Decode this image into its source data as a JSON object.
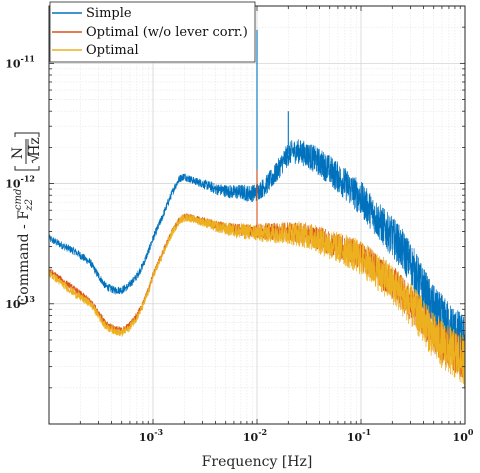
{
  "chart_data": {
    "type": "line",
    "xlabel": "Frequency [Hz]",
    "ylabel": "Command - F_{z2}^{cmd} [N/√Hz]",
    "ylabel_parts": {
      "prefix": "Command - F",
      "superscript": "cmd",
      "subscript": "z2",
      "unit_numerator": "N",
      "unit_denominator": "Hz"
    },
    "xscale": "log",
    "yscale": "log",
    "xlim": [
      0.0001,
      1
    ],
    "ylim": [
      1e-14,
      3e-11
    ],
    "grid": true,
    "legend_position": "top-left",
    "x_ticks": [
      {
        "value": 0.001,
        "label": "10^-3",
        "base": "10",
        "exp": "-3"
      },
      {
        "value": 0.01,
        "label": "10^-2",
        "base": "10",
        "exp": "-2"
      },
      {
        "value": 0.1,
        "label": "10^-1",
        "base": "10",
        "exp": "-1"
      },
      {
        "value": 1,
        "label": "10^0",
        "base": "10",
        "exp": "0"
      }
    ],
    "y_ticks": [
      {
        "value": 1e-13,
        "label": "10^-13",
        "base": "10",
        "exp": "-13"
      },
      {
        "value": 1e-12,
        "label": "10^-12",
        "base": "10",
        "exp": "-12"
      },
      {
        "value": 1e-11,
        "label": "10^-11",
        "base": "10",
        "exp": "-11"
      }
    ],
    "series": [
      {
        "name": "Simple",
        "color": "#0072BD",
        "x": [
          0.0001,
          0.00013,
          0.00018,
          0.00025,
          0.0003,
          0.00035,
          0.00042,
          0.0005,
          0.00058,
          0.0007,
          0.0008,
          0.0009,
          0.001,
          0.0012,
          0.0014,
          0.0016,
          0.0018,
          0.002,
          0.0022,
          0.0025,
          0.003,
          0.0035,
          0.004,
          0.005,
          0.006,
          0.007,
          0.008,
          0.009,
          0.01,
          0.012,
          0.015,
          0.018,
          0.02,
          0.022,
          0.025,
          0.03,
          0.04,
          0.05,
          0.07,
          0.1,
          0.13,
          0.17,
          0.22,
          0.3,
          0.4,
          0.5,
          0.7,
          1
        ],
        "y": [
          3.5e-13,
          3.1e-13,
          2.7e-13,
          2.2e-13,
          1.7e-13,
          1.4e-13,
          1.3e-13,
          1.3e-13,
          1.4e-13,
          1.7e-13,
          2.1e-13,
          2.7e-13,
          3.5e-13,
          5e-13,
          7e-13,
          9.2e-13,
          1.1e-12,
          1.15e-12,
          1.1e-12,
          1.05e-12,
          1e-12,
          9.5e-13,
          9e-13,
          8.7e-13,
          8.5e-13,
          8.5e-13,
          8.3e-13,
          8.3e-13,
          8.5e-13,
          9.5e-13,
          1.2e-12,
          1.55e-12,
          1.75e-12,
          1.85e-12,
          1.85e-12,
          1.75e-12,
          1.5e-12,
          1.3e-12,
          1e-12,
          7.5e-13,
          5.6e-13,
          4.2e-13,
          3.3e-13,
          2.2e-13,
          1.3e-13,
          9e-14,
          6.5e-14,
          4.8e-14
        ],
        "band": 0.22,
        "peaks": [
          {
            "x": 0.01,
            "y": 1.9e-11
          },
          {
            "x": 0.02,
            "y": 4e-12
          }
        ]
      },
      {
        "name": "Optimal (w/o lever corr.)",
        "color": "#D95319",
        "x": [
          0.0001,
          0.00013,
          0.00018,
          0.00025,
          0.0003,
          0.00035,
          0.00042,
          0.0005,
          0.00058,
          0.0007,
          0.0008,
          0.0009,
          0.001,
          0.0012,
          0.0014,
          0.0016,
          0.0018,
          0.002,
          0.0022,
          0.0025,
          0.003,
          0.0035,
          0.004,
          0.005,
          0.006,
          0.007,
          0.008,
          0.009,
          0.01,
          0.012,
          0.015,
          0.018,
          0.02,
          0.022,
          0.025,
          0.03,
          0.04,
          0.05,
          0.07,
          0.1,
          0.13,
          0.17,
          0.22,
          0.3,
          0.4,
          0.5,
          0.7,
          1
        ],
        "y": [
          1.9e-13,
          1.6e-13,
          1.3e-13,
          1.05e-13,
          8.5e-14,
          6.8e-14,
          6.3e-14,
          6e-14,
          6.5e-14,
          8e-14,
          1e-13,
          1.3e-13,
          1.75e-13,
          2.5e-13,
          3.4e-13,
          4.3e-13,
          5e-13,
          5.3e-13,
          5.3e-13,
          5.1e-13,
          4.9e-13,
          4.7e-13,
          4.5e-13,
          4.3e-13,
          4.2e-13,
          4.1e-13,
          4.1e-13,
          4e-13,
          4e-13,
          4e-13,
          4e-13,
          4e-13,
          4e-13,
          3.95e-13,
          3.9e-13,
          3.8e-13,
          3.5e-13,
          3.2e-13,
          2.9e-13,
          2.5e-13,
          2.1e-13,
          1.7e-13,
          1.4e-13,
          1e-13,
          7.5e-14,
          5.5e-14,
          4.3e-14,
          3.5e-14
        ],
        "band": 0.18,
        "peaks": [
          {
            "x": 0.01,
            "y": 1.3e-12
          }
        ]
      },
      {
        "name": "Optimal",
        "color": "#EDB120",
        "x": [
          0.0001,
          0.00013,
          0.00018,
          0.00025,
          0.0003,
          0.00035,
          0.00042,
          0.0005,
          0.00058,
          0.0007,
          0.0008,
          0.0009,
          0.001,
          0.0012,
          0.0014,
          0.0016,
          0.0018,
          0.002,
          0.0022,
          0.0025,
          0.003,
          0.0035,
          0.004,
          0.005,
          0.006,
          0.007,
          0.008,
          0.009,
          0.01,
          0.012,
          0.015,
          0.018,
          0.02,
          0.022,
          0.025,
          0.03,
          0.04,
          0.05,
          0.07,
          0.1,
          0.13,
          0.17,
          0.22,
          0.3,
          0.4,
          0.5,
          0.7,
          1
        ],
        "y": [
          1.8e-13,
          1.5e-13,
          1.2e-13,
          1e-13,
          8e-14,
          6.5e-14,
          6e-14,
          5.7e-14,
          6.2e-14,
          7.7e-14,
          9.6e-14,
          1.25e-13,
          1.7e-13,
          2.4e-13,
          3.3e-13,
          4.2e-13,
          4.9e-13,
          5.2e-13,
          5.2e-13,
          5e-13,
          4.8e-13,
          4.6e-13,
          4.4e-13,
          4.2e-13,
          4.1e-13,
          4e-13,
          4e-13,
          3.9e-13,
          3.9e-13,
          3.9e-13,
          3.9e-13,
          3.9e-13,
          3.9e-13,
          3.85e-13,
          3.8e-13,
          3.7e-13,
          3.4e-13,
          3.1e-13,
          2.8e-13,
          2.4e-13,
          2e-13,
          1.65e-13,
          1.35e-13,
          9.7e-14,
          7.2e-14,
          5.3e-14,
          4.1e-14,
          3.3e-14
        ],
        "band": 0.22,
        "peaks": []
      }
    ]
  }
}
